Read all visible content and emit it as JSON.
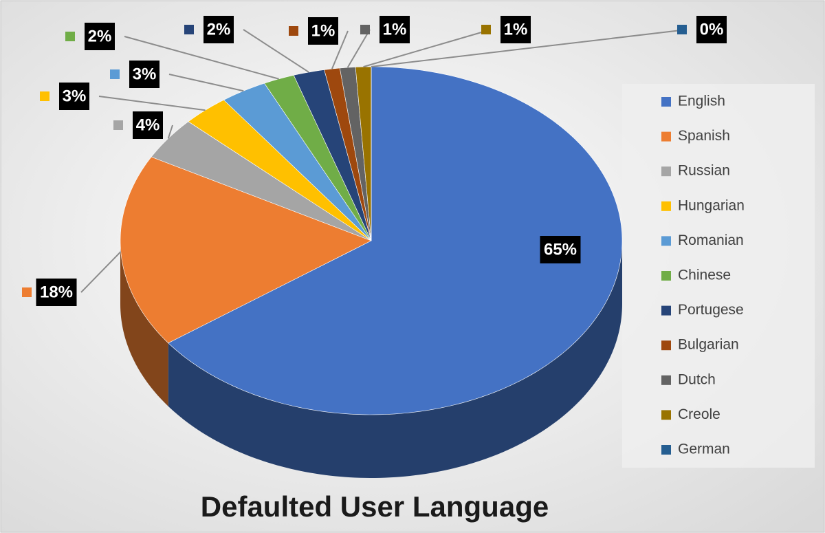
{
  "chart_data": {
    "type": "pie",
    "title": "Defaulted User Language",
    "categories": [
      "English",
      "Spanish",
      "Russian",
      "Hungarian",
      "Romanian",
      "Chinese",
      "Portugese",
      "Bulgarian",
      "Dutch",
      "Creole",
      "German"
    ],
    "values": [
      65,
      18,
      4,
      3,
      3,
      2,
      2,
      1,
      1,
      1,
      0
    ],
    "value_labels": [
      "65%",
      "18%",
      "4%",
      "3%",
      "3%",
      "2%",
      "2%",
      "1%",
      "1%",
      "1%",
      "0%"
    ],
    "colors": [
      "#4472c4",
      "#ed7d31",
      "#a5a5a5",
      "#ffc000",
      "#5b9bd5",
      "#70ad47",
      "#264478",
      "#9e480e",
      "#636363",
      "#997300",
      "#255e91"
    ],
    "legend": "right"
  }
}
